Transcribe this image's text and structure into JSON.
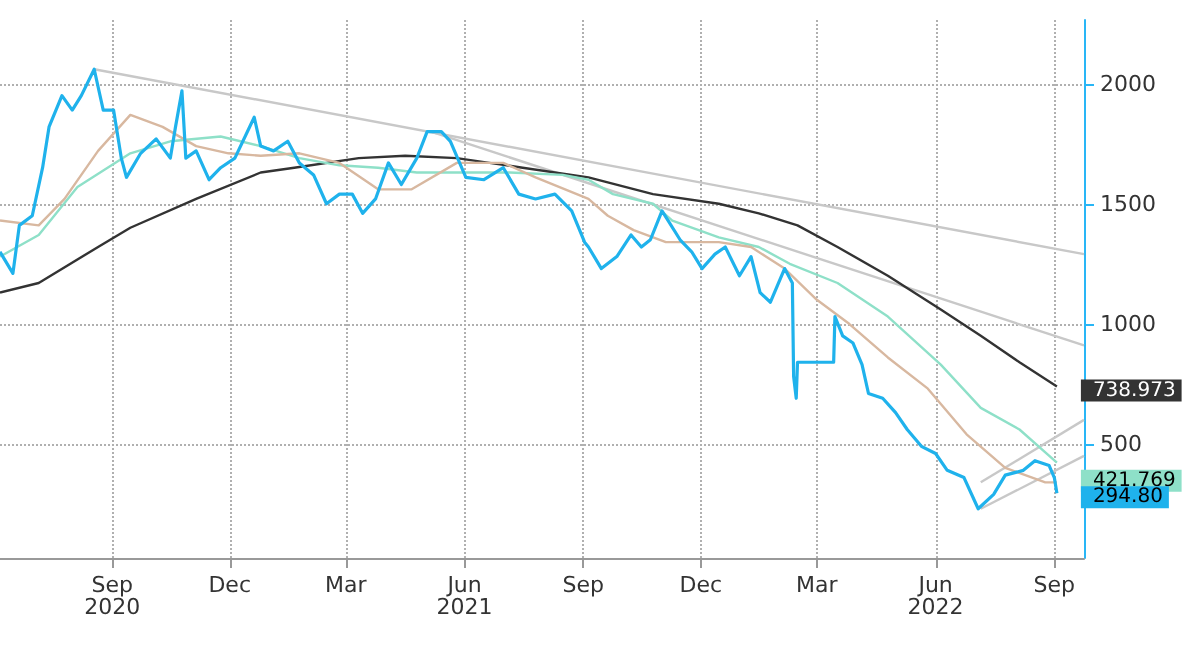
{
  "chart_data": {
    "type": "line",
    "xlim": [
      "2020-06-20",
      "2022-10-08"
    ],
    "xticks": [
      {
        "value": "2020-09-15",
        "label": "Sep\n2020"
      },
      {
        "value": "2020-12-15",
        "label": "Dec"
      },
      {
        "value": "2021-03-15",
        "label": "Mar"
      },
      {
        "value": "2021-06-15",
        "label": "Jun\n2021"
      },
      {
        "value": "2021-09-15",
        "label": "Sep"
      },
      {
        "value": "2021-12-15",
        "label": "Dec"
      },
      {
        "value": "2022-03-15",
        "label": "Mar"
      },
      {
        "value": "2022-06-15",
        "label": "Jun\n2022"
      },
      {
        "value": "2022-09-15",
        "label": "Sep"
      }
    ],
    "ylim": [
      25,
      2265
    ],
    "yticks": [
      500,
      1000,
      1500,
      2000
    ],
    "grid": true,
    "series": [
      {
        "color": "#c8c8c8",
        "x": [
          "2020-09-01",
          "2022-10-08"
        ],
        "values": [
          2060,
          1290
        ]
      },
      {
        "color": "#c8c8c8",
        "x": [
          "2021-05-20",
          "2022-10-08"
        ],
        "values": [
          1800,
          910
        ]
      },
      {
        "color": "#c8c8c8",
        "x": [
          "2022-07-20",
          "2022-10-08"
        ],
        "values": [
          340,
          600
        ]
      },
      {
        "color": "#c8c8c8",
        "x": [
          "2022-07-20",
          "2022-10-08"
        ],
        "values": [
          230,
          450
        ]
      },
      {
        "color": "#333333",
        "x": [
          "2020-06-20",
          "2020-07-20",
          "2020-09-04",
          "2020-09-29",
          "2020-11-19",
          "2021-01-08",
          "2021-02-03",
          "2021-03-25",
          "2021-04-30",
          "2021-06-09",
          "2021-07-30",
          "2021-09-19",
          "2021-11-08",
          "2021-12-29",
          "2022-01-29",
          "2022-02-28",
          "2022-03-31",
          "2022-05-09",
          "2022-06-19",
          "2022-07-20",
          "2022-08-19",
          "2022-09-17"
        ],
        "values": [
          1130,
          1170,
          1320,
          1400,
          1520,
          1630,
          1650,
          1690,
          1700,
          1690,
          1650,
          1610,
          1540,
          1500,
          1460,
          1410,
          1320,
          1200,
          1060,
          950,
          840,
          738.973
        ],
        "value_labels": [
          null,
          null,
          null,
          null,
          null,
          null,
          null,
          null,
          null,
          null,
          null,
          null,
          null,
          null,
          null,
          null,
          null,
          null,
          null,
          null,
          null,
          "738.973"
        ]
      },
      {
        "color": "#8ee0c8",
        "x": [
          "2020-06-20",
          "2020-07-20",
          "2020-08-19",
          "2020-09-29",
          "2020-10-30",
          "2020-12-08",
          "2021-01-08",
          "2021-02-07",
          "2021-03-10",
          "2021-04-09",
          "2021-05-09",
          "2021-06-09",
          "2021-07-20",
          "2021-08-30",
          "2021-09-19",
          "2021-10-08",
          "2021-11-08",
          "2021-11-23",
          "2021-12-29",
          "2022-01-29",
          "2022-02-22",
          "2022-03-31",
          "2022-05-09",
          "2022-06-19",
          "2022-07-20",
          "2022-08-19",
          "2022-09-17"
        ],
        "values": [
          1280,
          1370,
          1570,
          1710,
          1760,
          1780,
          1740,
          1690,
          1660,
          1650,
          1630,
          1630,
          1630,
          1620,
          1600,
          1540,
          1500,
          1430,
          1360,
          1320,
          1250,
          1170,
          1030,
          830,
          650,
          560,
          421.769
        ],
        "value_labels": [
          null,
          null,
          null,
          null,
          null,
          null,
          null,
          null,
          null,
          null,
          null,
          null,
          null,
          null,
          null,
          null,
          null,
          null,
          null,
          null,
          null,
          null,
          null,
          null,
          null,
          null,
          "421.769"
        ]
      },
      {
        "color": "#d8b8a0",
        "x": [
          "2020-06-20",
          "2020-07-20",
          "2020-08-09",
          "2020-09-04",
          "2020-09-29",
          "2020-10-24",
          "2020-11-19",
          "2020-12-14",
          "2021-01-08",
          "2021-02-07",
          "2021-03-10",
          "2021-04-09",
          "2021-05-05",
          "2021-06-09",
          "2021-07-15",
          "2021-08-09",
          "2021-09-19",
          "2021-10-04",
          "2021-10-24",
          "2021-11-18",
          "2021-12-29",
          "2022-01-23",
          "2022-02-18",
          "2022-03-15",
          "2022-04-09",
          "2022-05-09",
          "2022-06-09",
          "2022-07-09",
          "2022-08-08",
          "2022-09-08",
          "2022-09-17"
        ],
        "values": [
          1430,
          1410,
          1520,
          1720,
          1870,
          1820,
          1740,
          1710,
          1700,
          1710,
          1670,
          1560,
          1560,
          1670,
          1670,
          1610,
          1520,
          1450,
          1390,
          1340,
          1340,
          1320,
          1230,
          1100,
          1000,
          860,
          730,
          540,
          400,
          340,
          340
        ]
      },
      {
        "color": "#1fb2ec",
        "x": [
          "2020-06-20",
          "2020-06-30",
          "2020-07-05",
          "2020-07-15",
          "2020-07-23",
          "2020-07-28",
          "2020-08-07",
          "2020-08-15",
          "2020-08-22",
          "2020-09-01",
          "2020-09-08",
          "2020-09-16",
          "2020-09-22",
          "2020-09-26",
          "2020-10-07",
          "2020-10-19",
          "2020-10-30",
          "2020-11-03",
          "2020-11-08",
          "2020-11-11",
          "2020-11-19",
          "2020-11-29",
          "2020-12-08",
          "2020-12-19",
          "2021-01-03",
          "2021-01-08",
          "2021-01-18",
          "2021-01-29",
          "2021-02-07",
          "2021-02-18",
          "2021-02-28",
          "2021-03-10",
          "2021-03-20",
          "2021-03-28",
          "2021-04-07",
          "2021-04-17",
          "2021-04-27",
          "2021-05-09",
          "2021-05-17",
          "2021-05-28",
          "2021-06-04",
          "2021-06-16",
          "2021-06-30",
          "2021-07-15",
          "2021-07-27",
          "2021-08-09",
          "2021-08-24",
          "2021-09-06",
          "2021-09-16",
          "2021-09-19",
          "2021-09-29",
          "2021-10-11",
          "2021-10-22",
          "2021-10-30",
          "2021-11-06",
          "2021-11-15",
          "2021-11-29",
          "2021-12-08",
          "2021-12-16",
          "2021-12-26",
          "2022-01-03",
          "2022-01-14",
          "2022-01-23",
          "2022-01-30",
          "2022-02-07",
          "2022-02-18",
          "2022-02-24",
          "2022-02-25",
          "2022-02-27",
          "2022-02-28",
          "2022-03-28",
          "2022-03-29",
          "2022-04-04",
          "2022-04-12",
          "2022-04-19",
          "2022-04-24",
          "2022-05-05",
          "2022-05-15",
          "2022-05-24",
          "2022-06-04",
          "2022-06-15",
          "2022-06-24",
          "2022-07-07",
          "2022-07-18",
          "2022-07-30",
          "2022-08-08",
          "2022-08-22",
          "2022-08-31",
          "2022-09-11",
          "2022-09-15",
          "2022-09-17"
        ],
        "values": [
          1300,
          1210,
          1410,
          1450,
          1650,
          1820,
          1950,
          1890,
          1950,
          2060,
          1890,
          1890,
          1690,
          1610,
          1710,
          1770,
          1690,
          1820,
          1970,
          1690,
          1720,
          1600,
          1650,
          1690,
          1860,
          1740,
          1720,
          1760,
          1670,
          1620,
          1500,
          1540,
          1540,
          1460,
          1520,
          1670,
          1580,
          1690,
          1800,
          1800,
          1760,
          1610,
          1600,
          1650,
          1540,
          1520,
          1540,
          1470,
          1340,
          1320,
          1230,
          1280,
          1370,
          1320,
          1350,
          1470,
          1350,
          1300,
          1230,
          1290,
          1320,
          1200,
          1280,
          1130,
          1090,
          1230,
          1170,
          780,
          690,
          840,
          840,
          1030,
          950,
          920,
          830,
          710,
          690,
          630,
          560,
          490,
          460,
          390,
          360,
          230,
          290,
          370,
          390,
          430,
          410,
          360,
          294.8
        ],
        "value_labels": [
          null,
          null,
          null,
          null,
          null,
          null,
          null,
          null,
          null,
          null,
          null,
          null,
          null,
          null,
          null,
          null,
          null,
          null,
          null,
          null,
          null,
          null,
          null,
          null,
          null,
          null,
          null,
          null,
          null,
          null,
          null,
          null,
          null,
          null,
          null,
          null,
          null,
          null,
          null,
          null,
          null,
          null,
          null,
          null,
          null,
          null,
          null,
          null,
          null,
          null,
          null,
          null,
          null,
          null,
          null,
          null,
          null,
          null,
          null,
          null,
          null,
          null,
          null,
          null,
          null,
          null,
          null,
          null,
          null,
          null,
          null,
          null,
          null,
          null,
          null,
          null,
          null,
          null,
          null,
          null,
          null,
          null,
          null,
          null,
          null,
          null,
          null,
          null,
          null,
          null,
          "294.80"
        ]
      }
    ]
  }
}
